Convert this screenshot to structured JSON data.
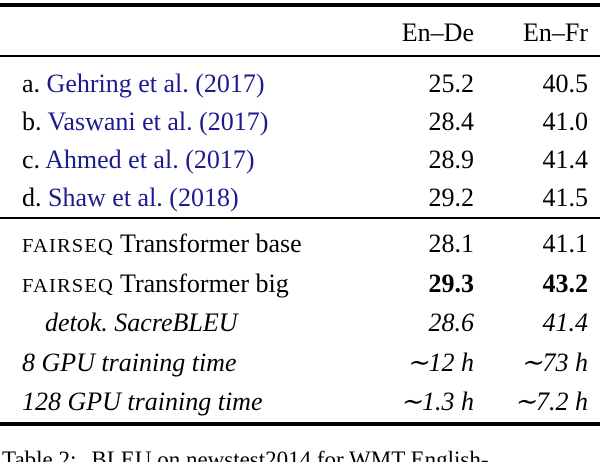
{
  "table": {
    "columns": {
      "en_de": "En–De",
      "en_fr": "En–Fr"
    },
    "baseline_rows": [
      {
        "prefix": "a.",
        "citation": "Gehring et al. (2017)",
        "en_de": "25.2",
        "en_fr": "40.5"
      },
      {
        "prefix": "b.",
        "citation": "Vaswani et al. (2017)",
        "en_de": "28.4",
        "en_fr": "41.0"
      },
      {
        "prefix": "c.",
        "citation": "Ahmed et al. (2017)",
        "en_de": "28.9",
        "en_fr": "41.4"
      },
      {
        "prefix": "d.",
        "citation": "Shaw et al. (2018)",
        "en_de": "29.2",
        "en_fr": "41.5"
      }
    ],
    "fairseq_rows": [
      {
        "brand": "FAIRSEQ",
        "label": " Transformer base",
        "en_de": "28.1",
        "en_fr": "41.1"
      },
      {
        "brand": "FAIRSEQ",
        "label": " Transformer big",
        "en_de": "29.3",
        "en_fr": "43.2"
      },
      {
        "label": "detok. SacreBLEU",
        "en_de": "28.6",
        "en_fr": "41.4"
      },
      {
        "label": "8 GPU training time",
        "en_de": "∼12 h",
        "en_fr": "∼73 h"
      },
      {
        "label": "128 GPU training time",
        "en_de": "∼1.3 h",
        "en_fr": "∼7.2 h"
      }
    ]
  },
  "caption": {
    "label": "Table 2:",
    "text": "BLEU on newstest2014 for WMT English-"
  },
  "colors": {
    "citation_link": "#1b1b8e",
    "rule": "#000000",
    "background": "#ffffff"
  }
}
